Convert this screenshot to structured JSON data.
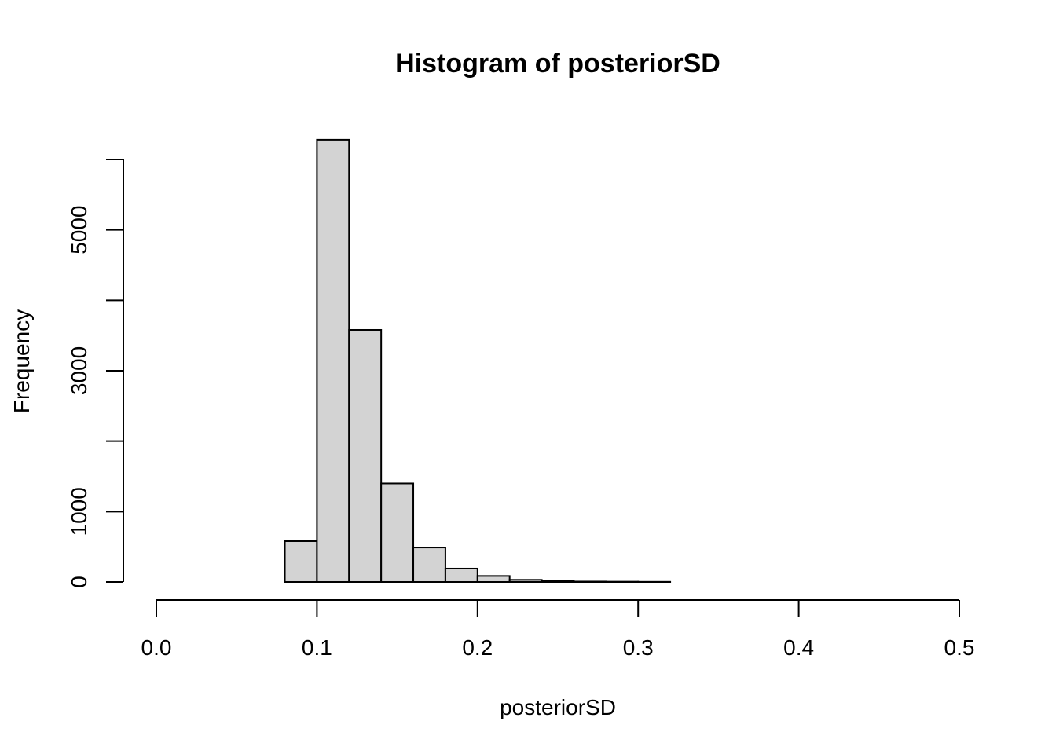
{
  "chart_data": {
    "type": "bar",
    "title": "Histogram of posteriorSD",
    "xlabel": "posteriorSD",
    "ylabel": "Frequency",
    "bin_edges": [
      0.08,
      0.1,
      0.12,
      0.14,
      0.16,
      0.18,
      0.2,
      0.22,
      0.24,
      0.26,
      0.28,
      0.3,
      0.32
    ],
    "values": [
      580,
      6280,
      3580,
      1400,
      490,
      190,
      85,
      30,
      15,
      6,
      4,
      2
    ],
    "xlim": [
      0,
      0.5
    ],
    "ylim": [
      0,
      6000
    ],
    "xticks": [
      0,
      0.1,
      0.2,
      0.3,
      0.4,
      0.5
    ],
    "xtick_labels": [
      "0.0",
      "0.1",
      "0.2",
      "0.3",
      "0.4",
      "0.5"
    ],
    "yticks": [
      0,
      1000,
      2000,
      3000,
      4000,
      5000,
      6000
    ],
    "ytick_labels": [
      "0",
      "1000",
      "",
      "3000",
      "",
      "5000",
      ""
    ],
    "bar_fill": "#d3d3d3",
    "bar_stroke": "#000000",
    "grid": false,
    "legend": false
  }
}
